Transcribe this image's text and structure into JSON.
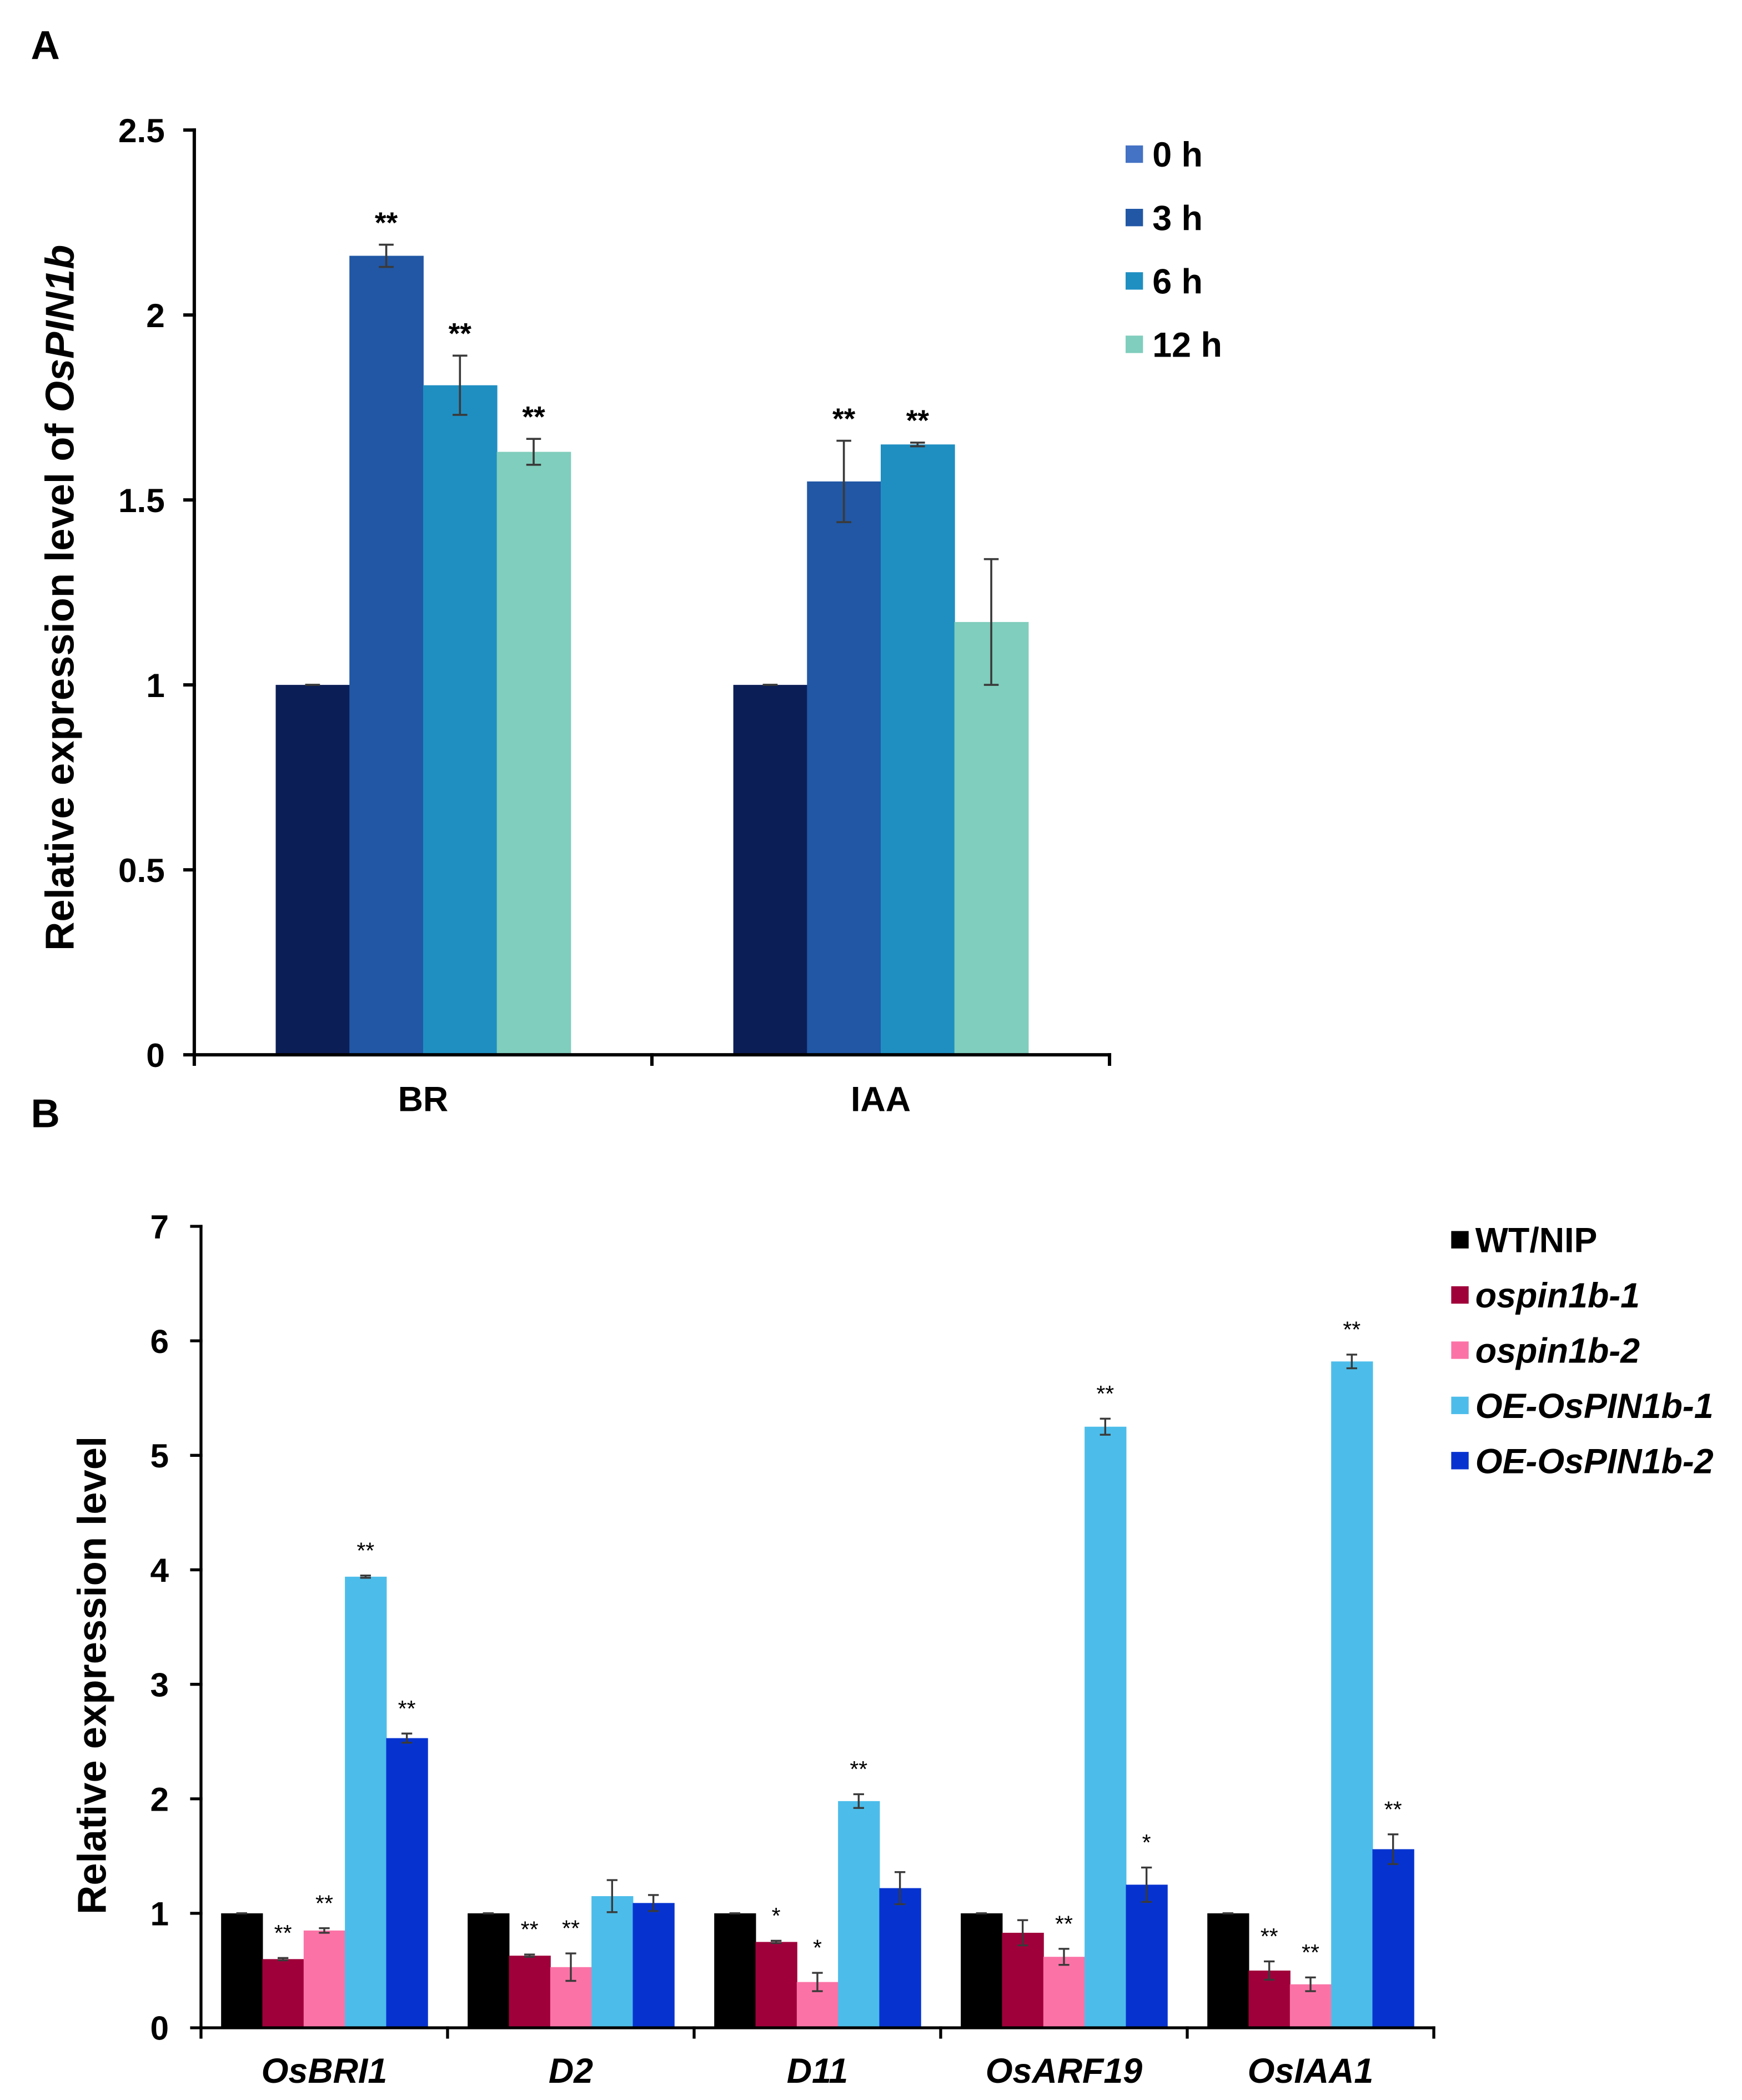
{
  "chart_data": [
    {
      "panel": "A",
      "type": "bar",
      "categories": [
        "BR",
        "IAA"
      ],
      "categories_italic": false,
      "ylabel_parts": [
        {
          "text": "Relative expression level of ",
          "italic": false
        },
        {
          "text": "OsPIN1b",
          "italic": true
        }
      ],
      "ylim": [
        0,
        2.5
      ],
      "yticks": [
        0,
        0.5,
        1,
        1.5,
        2,
        2.5
      ],
      "ytick_labels": [
        "0",
        "0.5",
        "1",
        "1.5",
        "2",
        "2.5"
      ],
      "grid": false,
      "legend": "top-right",
      "series": [
        {
          "name": "0 h",
          "italic": false,
          "color": "#0b1e56",
          "legend_color": "#4472c4",
          "values": [
            1.0,
            1.0
          ],
          "errors": [
            0,
            0
          ],
          "significance": [
            null,
            null
          ]
        },
        {
          "name": "3 h",
          "italic": false,
          "color": "#2157a5",
          "legend_color": "#2157a5",
          "values": [
            2.16,
            1.55
          ],
          "errors": [
            0.03,
            0.11
          ],
          "significance": [
            "**",
            "**"
          ]
        },
        {
          "name": "6 h",
          "italic": false,
          "color": "#1f8fc2",
          "legend_color": "#1f8fc2",
          "values": [
            1.81,
            1.65
          ],
          "errors": [
            0.08,
            0.005
          ],
          "significance": [
            "**",
            "**"
          ]
        },
        {
          "name": "12 h",
          "italic": false,
          "color": "#80cebd",
          "legend_color": "#80cebd",
          "values": [
            1.63,
            1.17
          ],
          "errors": [
            0.035,
            0.17
          ],
          "significance": [
            "**",
            null
          ]
        }
      ]
    },
    {
      "panel": "B",
      "type": "bar",
      "categories": [
        "OsBRI1",
        "D2",
        "D11",
        "OsARF19",
        "OsIAA1"
      ],
      "categories_italic": true,
      "ylabel_parts": [
        {
          "text": "Relative expression level",
          "italic": false
        }
      ],
      "ylim": [
        0,
        7
      ],
      "yticks": [
        0,
        1,
        2,
        3,
        4,
        5,
        6,
        7
      ],
      "ytick_labels": [
        "0",
        "1",
        "2",
        "3",
        "4",
        "5",
        "6",
        "7"
      ],
      "grid": false,
      "legend": "top-right",
      "series": [
        {
          "name": "WT/NIP",
          "italic": false,
          "color": "#000000",
          "legend_color": "#000000",
          "values": [
            1.0,
            1.0,
            1.0,
            1.0,
            1.0
          ],
          "errors": [
            0,
            0,
            0,
            0,
            0
          ],
          "significance": [
            null,
            null,
            null,
            null,
            null
          ]
        },
        {
          "name": "ospin1b-1",
          "italic": true,
          "color": "#a0003a",
          "legend_color": "#a0003a",
          "values": [
            0.6,
            0.63,
            0.75,
            0.83,
            0.5
          ],
          "errors": [
            0.01,
            0.01,
            0.01,
            0.11,
            0.08
          ],
          "significance": [
            "**",
            "**",
            "*",
            null,
            "**"
          ]
        },
        {
          "name": "ospin1b-2",
          "italic": true,
          "color": "#fb73a6",
          "legend_color": "#fb73a6",
          "values": [
            0.85,
            0.53,
            0.4,
            0.62,
            0.38
          ],
          "errors": [
            0.02,
            0.12,
            0.08,
            0.07,
            0.06
          ],
          "significance": [
            "**",
            "**",
            "*",
            "**",
            "**"
          ]
        },
        {
          "name": "OE-OsPIN1b-1",
          "italic": true,
          "color": "#4cbdea",
          "legend_color": "#4cbdea",
          "values": [
            3.94,
            1.15,
            1.98,
            5.25,
            5.82
          ],
          "errors": [
            0.01,
            0.14,
            0.06,
            0.07,
            0.06
          ],
          "significance": [
            "**",
            null,
            "**",
            "**",
            "**"
          ]
        },
        {
          "name": "OE-OsPIN1b-2",
          "italic": true,
          "color": "#0633d0",
          "legend_color": "#0633d0",
          "values": [
            2.53,
            1.09,
            1.22,
            1.25,
            1.56
          ],
          "errors": [
            0.04,
            0.07,
            0.14,
            0.15,
            0.13
          ],
          "significance": [
            "**",
            null,
            null,
            "*",
            "**"
          ]
        }
      ]
    }
  ]
}
